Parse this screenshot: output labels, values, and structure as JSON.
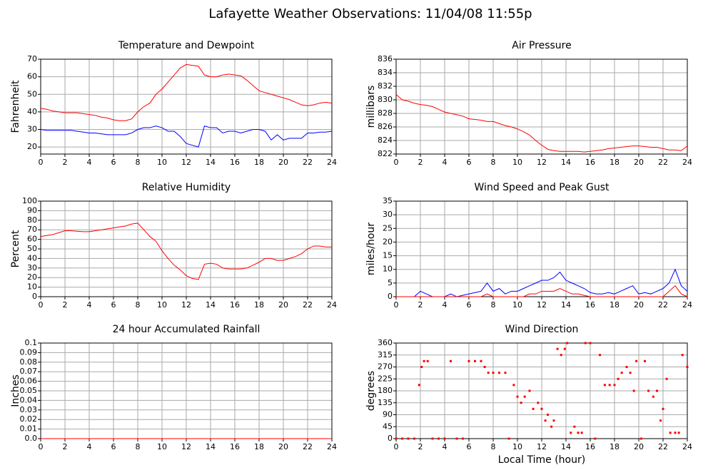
{
  "title": "Lafayette Weather Observations: 11/04/08 11:55p",
  "chart_data": [
    {
      "type": "line",
      "title": "Temperature and Dewpoint",
      "ylabel": "Fahrenheit",
      "x": [
        0,
        0.5,
        1,
        1.5,
        2,
        2.5,
        3,
        3.5,
        4,
        4.5,
        5,
        5.5,
        6,
        6.5,
        7,
        7.5,
        8,
        8.5,
        9,
        9.5,
        10,
        10.5,
        11,
        11.5,
        12,
        12.5,
        13,
        13.5,
        14,
        14.5,
        15,
        15.5,
        16,
        16.5,
        17,
        17.5,
        18,
        18.5,
        19,
        19.5,
        20,
        20.5,
        21,
        21.5,
        22,
        22.5,
        23,
        23.5,
        24
      ],
      "series": [
        {
          "color": "#ff0000",
          "values": [
            42,
            41.5,
            40.5,
            40,
            39.5,
            39.5,
            39.5,
            39,
            38.5,
            38,
            37,
            36.5,
            35.5,
            35,
            35,
            36,
            40,
            43,
            45,
            50,
            53,
            57,
            61,
            65,
            67,
            66.5,
            66,
            61,
            60,
            60,
            61,
            61.5,
            61,
            60.5,
            58,
            55,
            52,
            51,
            50,
            49,
            48,
            47,
            45.5,
            44,
            43.5,
            44,
            45,
            45.5,
            45
          ]
        },
        {
          "color": "#0000ff",
          "values": [
            30,
            29.5,
            29.5,
            29.5,
            29.5,
            29.5,
            29,
            28.5,
            28,
            28,
            27.5,
            27,
            27,
            27,
            27,
            28,
            30,
            31,
            31,
            32,
            31,
            29,
            29,
            26,
            22,
            21,
            20,
            32,
            31,
            31,
            28,
            29,
            29,
            28,
            29,
            30,
            30,
            29,
            24,
            27,
            24,
            25,
            25,
            25,
            28,
            28,
            28.5,
            28.5,
            29
          ]
        }
      ],
      "xlim": [
        0,
        24
      ],
      "xticks": [
        0,
        2,
        4,
        6,
        8,
        10,
        12,
        14,
        16,
        18,
        20,
        22,
        24
      ],
      "ylim": [
        16,
        70
      ],
      "yticks": [
        20,
        30,
        40,
        50,
        60,
        70
      ],
      "grid": true
    },
    {
      "type": "line",
      "title": "Air Pressure",
      "ylabel": "millibars",
      "x": [
        0,
        0.5,
        1,
        1.5,
        2,
        2.5,
        3,
        3.5,
        4,
        4.5,
        5,
        5.5,
        6,
        6.5,
        7,
        7.5,
        8,
        8.5,
        9,
        9.5,
        10,
        10.5,
        11,
        11.5,
        12,
        12.5,
        13,
        13.5,
        14,
        14.5,
        15,
        15.5,
        16,
        16.5,
        17,
        17.5,
        18,
        18.5,
        19,
        19.5,
        20,
        20.5,
        21,
        21.5,
        22,
        22.5,
        23,
        23.5,
        24
      ],
      "series": [
        {
          "color": "#ff0000",
          "values": [
            830.8,
            830,
            829.8,
            829.5,
            829.3,
            829.2,
            829,
            828.6,
            828.2,
            828,
            827.8,
            827.6,
            827.2,
            827.1,
            827,
            826.8,
            826.8,
            826.5,
            826.2,
            826,
            825.7,
            825.3,
            824.8,
            824,
            823.3,
            822.7,
            822.5,
            822.4,
            822.4,
            822.4,
            822.4,
            822.3,
            822.4,
            822.5,
            822.6,
            822.8,
            822.9,
            823,
            823.1,
            823.2,
            823.2,
            823.1,
            823,
            823,
            822.8,
            822.6,
            822.6,
            822.5,
            823.2
          ]
        }
      ],
      "xlim": [
        0,
        24
      ],
      "xticks": [
        0,
        2,
        4,
        6,
        8,
        10,
        12,
        14,
        16,
        18,
        20,
        22,
        24
      ],
      "ylim": [
        822,
        836
      ],
      "yticks": [
        822,
        824,
        826,
        828,
        830,
        832,
        834,
        836
      ],
      "grid": true
    },
    {
      "type": "line",
      "title": "Relative Humidity",
      "ylabel": "Percent",
      "x": [
        0,
        0.5,
        1,
        1.5,
        2,
        2.5,
        3,
        3.5,
        4,
        4.5,
        5,
        5.5,
        6,
        6.5,
        7,
        7.5,
        8,
        8.5,
        9,
        9.5,
        10,
        10.5,
        11,
        11.5,
        12,
        12.5,
        13,
        13.5,
        14,
        14.5,
        15,
        15.5,
        16,
        16.5,
        17,
        17.5,
        18,
        18.5,
        19,
        19.5,
        20,
        20.5,
        21,
        21.5,
        22,
        22.5,
        23,
        23.5,
        24
      ],
      "series": [
        {
          "color": "#ff0000",
          "values": [
            63,
            64,
            65,
            67,
            69,
            69,
            68.5,
            68,
            68,
            69,
            70,
            71,
            72,
            73,
            74,
            76,
            77,
            70,
            63,
            58,
            48,
            40,
            33,
            28,
            22,
            19,
            18,
            34,
            35,
            34,
            30,
            29,
            29,
            29,
            30,
            33,
            36,
            40,
            40,
            38,
            38,
            40,
            42,
            45,
            50,
            53,
            53,
            52,
            52
          ]
        }
      ],
      "xlim": [
        0,
        24
      ],
      "xticks": [
        0,
        2,
        4,
        6,
        8,
        10,
        12,
        14,
        16,
        18,
        20,
        22,
        24
      ],
      "ylim": [
        0,
        100
      ],
      "yticks": [
        0,
        10,
        20,
        30,
        40,
        50,
        60,
        70,
        80,
        90,
        100
      ],
      "grid": true
    },
    {
      "type": "line",
      "title": "Wind Speed and Peak Gust",
      "ylabel": "miles/hour",
      "x": [
        0,
        0.5,
        1,
        1.5,
        2,
        2.5,
        3,
        3.5,
        4,
        4.5,
        5,
        5.5,
        6,
        6.5,
        7,
        7.5,
        8,
        8.5,
        9,
        9.5,
        10,
        10.5,
        11,
        11.5,
        12,
        12.5,
        13,
        13.5,
        14,
        14.5,
        15,
        15.5,
        16,
        16.5,
        17,
        17.5,
        18,
        18.5,
        19,
        19.5,
        20,
        20.5,
        21,
        21.5,
        22,
        22.5,
        23,
        23.5,
        24
      ],
      "series": [
        {
          "color": "#0000ff",
          "values": [
            0,
            0,
            0,
            0,
            2,
            1,
            0,
            0,
            0,
            1,
            0,
            0.5,
            1,
            1.5,
            2,
            5,
            2,
            3,
            1,
            2,
            2,
            3,
            4,
            5,
            6,
            6,
            7,
            9,
            6,
            5,
            4,
            3,
            1.5,
            1,
            1,
            1.5,
            1,
            2,
            3,
            4,
            1,
            1.5,
            1,
            2,
            3,
            5,
            10,
            4,
            2
          ]
        },
        {
          "color": "#ff0000",
          "values": [
            0,
            0,
            0,
            0,
            0,
            0,
            0,
            0,
            0,
            0,
            0,
            0,
            0,
            0,
            0,
            1,
            0,
            0,
            0,
            0,
            0,
            0,
            1,
            1,
            2,
            2,
            2,
            3,
            2,
            1,
            1,
            0.5,
            0,
            0,
            0,
            0,
            0,
            0,
            0,
            0,
            0,
            0,
            0,
            0,
            0,
            2,
            4,
            1,
            0
          ]
        }
      ],
      "xlim": [
        0,
        24
      ],
      "xticks": [
        0,
        2,
        4,
        6,
        8,
        10,
        12,
        14,
        16,
        18,
        20,
        22,
        24
      ],
      "ylim": [
        0,
        35
      ],
      "yticks": [
        0,
        5,
        10,
        15,
        20,
        25,
        30,
        35
      ],
      "grid": true
    },
    {
      "type": "line",
      "title": "24 hour Accumulated Rainfall",
      "ylabel": "Inches",
      "x": [
        0,
        24
      ],
      "series": [
        {
          "color": "#ff0000",
          "values": [
            0,
            0
          ]
        }
      ],
      "xlim": [
        0,
        24
      ],
      "xticks": [
        0,
        2,
        4,
        6,
        8,
        10,
        12,
        14,
        16,
        18,
        20,
        22,
        24
      ],
      "ylim": [
        0,
        0.1
      ],
      "yticks": [
        {
          "value": 0,
          "label": "0.0"
        },
        0.01,
        0.02,
        0.03,
        0.04,
        0.05,
        0.06,
        0.07,
        0.08,
        0.09,
        0.1
      ],
      "grid": true
    },
    {
      "type": "scatter",
      "title": "Wind Direction",
      "ylabel": "degrees",
      "xlabel": "Local Time (hour)",
      "x": [
        0,
        0.5,
        1,
        1.5,
        1.9,
        2.1,
        2.3,
        2.6,
        3,
        3.5,
        4,
        4.5,
        5,
        5.5,
        6,
        6.5,
        7,
        7.3,
        7.6,
        8,
        8.5,
        9,
        9.3,
        9.7,
        10,
        10.3,
        10.6,
        11,
        11.3,
        11.7,
        12,
        12.3,
        12.5,
        12.8,
        13,
        13.3,
        13.6,
        13.9,
        14.1,
        14.4,
        14.7,
        15,
        15.3,
        15.6,
        16,
        16.4,
        16.8,
        17.2,
        17.6,
        18,
        18.3,
        18.6,
        19,
        19.3,
        19.6,
        19.8,
        20.2,
        20.5,
        20.8,
        21.2,
        21.5,
        21.8,
        22,
        22.3,
        22.6,
        23,
        23.3,
        23.6,
        24
      ],
      "series": [
        {
          "color": "#ff0000",
          "values": [
            0,
            0,
            0,
            0,
            202,
            270,
            292,
            292,
            0,
            0,
            0,
            292,
            0,
            0,
            292,
            292,
            292,
            270,
            248,
            248,
            248,
            248,
            0,
            202,
            158,
            135,
            158,
            180,
            112,
            135,
            112,
            68,
            90,
            45,
            68,
            338,
            315,
            338,
            360,
            22,
            45,
            22,
            22,
            360,
            360,
            0,
            315,
            202,
            202,
            202,
            225,
            248,
            270,
            248,
            180,
            292,
            0,
            292,
            180,
            158,
            180,
            68,
            112,
            225,
            22,
            22,
            22,
            315,
            270
          ]
        }
      ],
      "xlim": [
        0,
        24
      ],
      "xticks": [
        0,
        2,
        4,
        6,
        8,
        10,
        12,
        14,
        16,
        18,
        20,
        22,
        24
      ],
      "ylim": [
        0,
        360
      ],
      "yticks": [
        0,
        45,
        90,
        135,
        180,
        225,
        270,
        315,
        360
      ],
      "grid": true
    }
  ]
}
